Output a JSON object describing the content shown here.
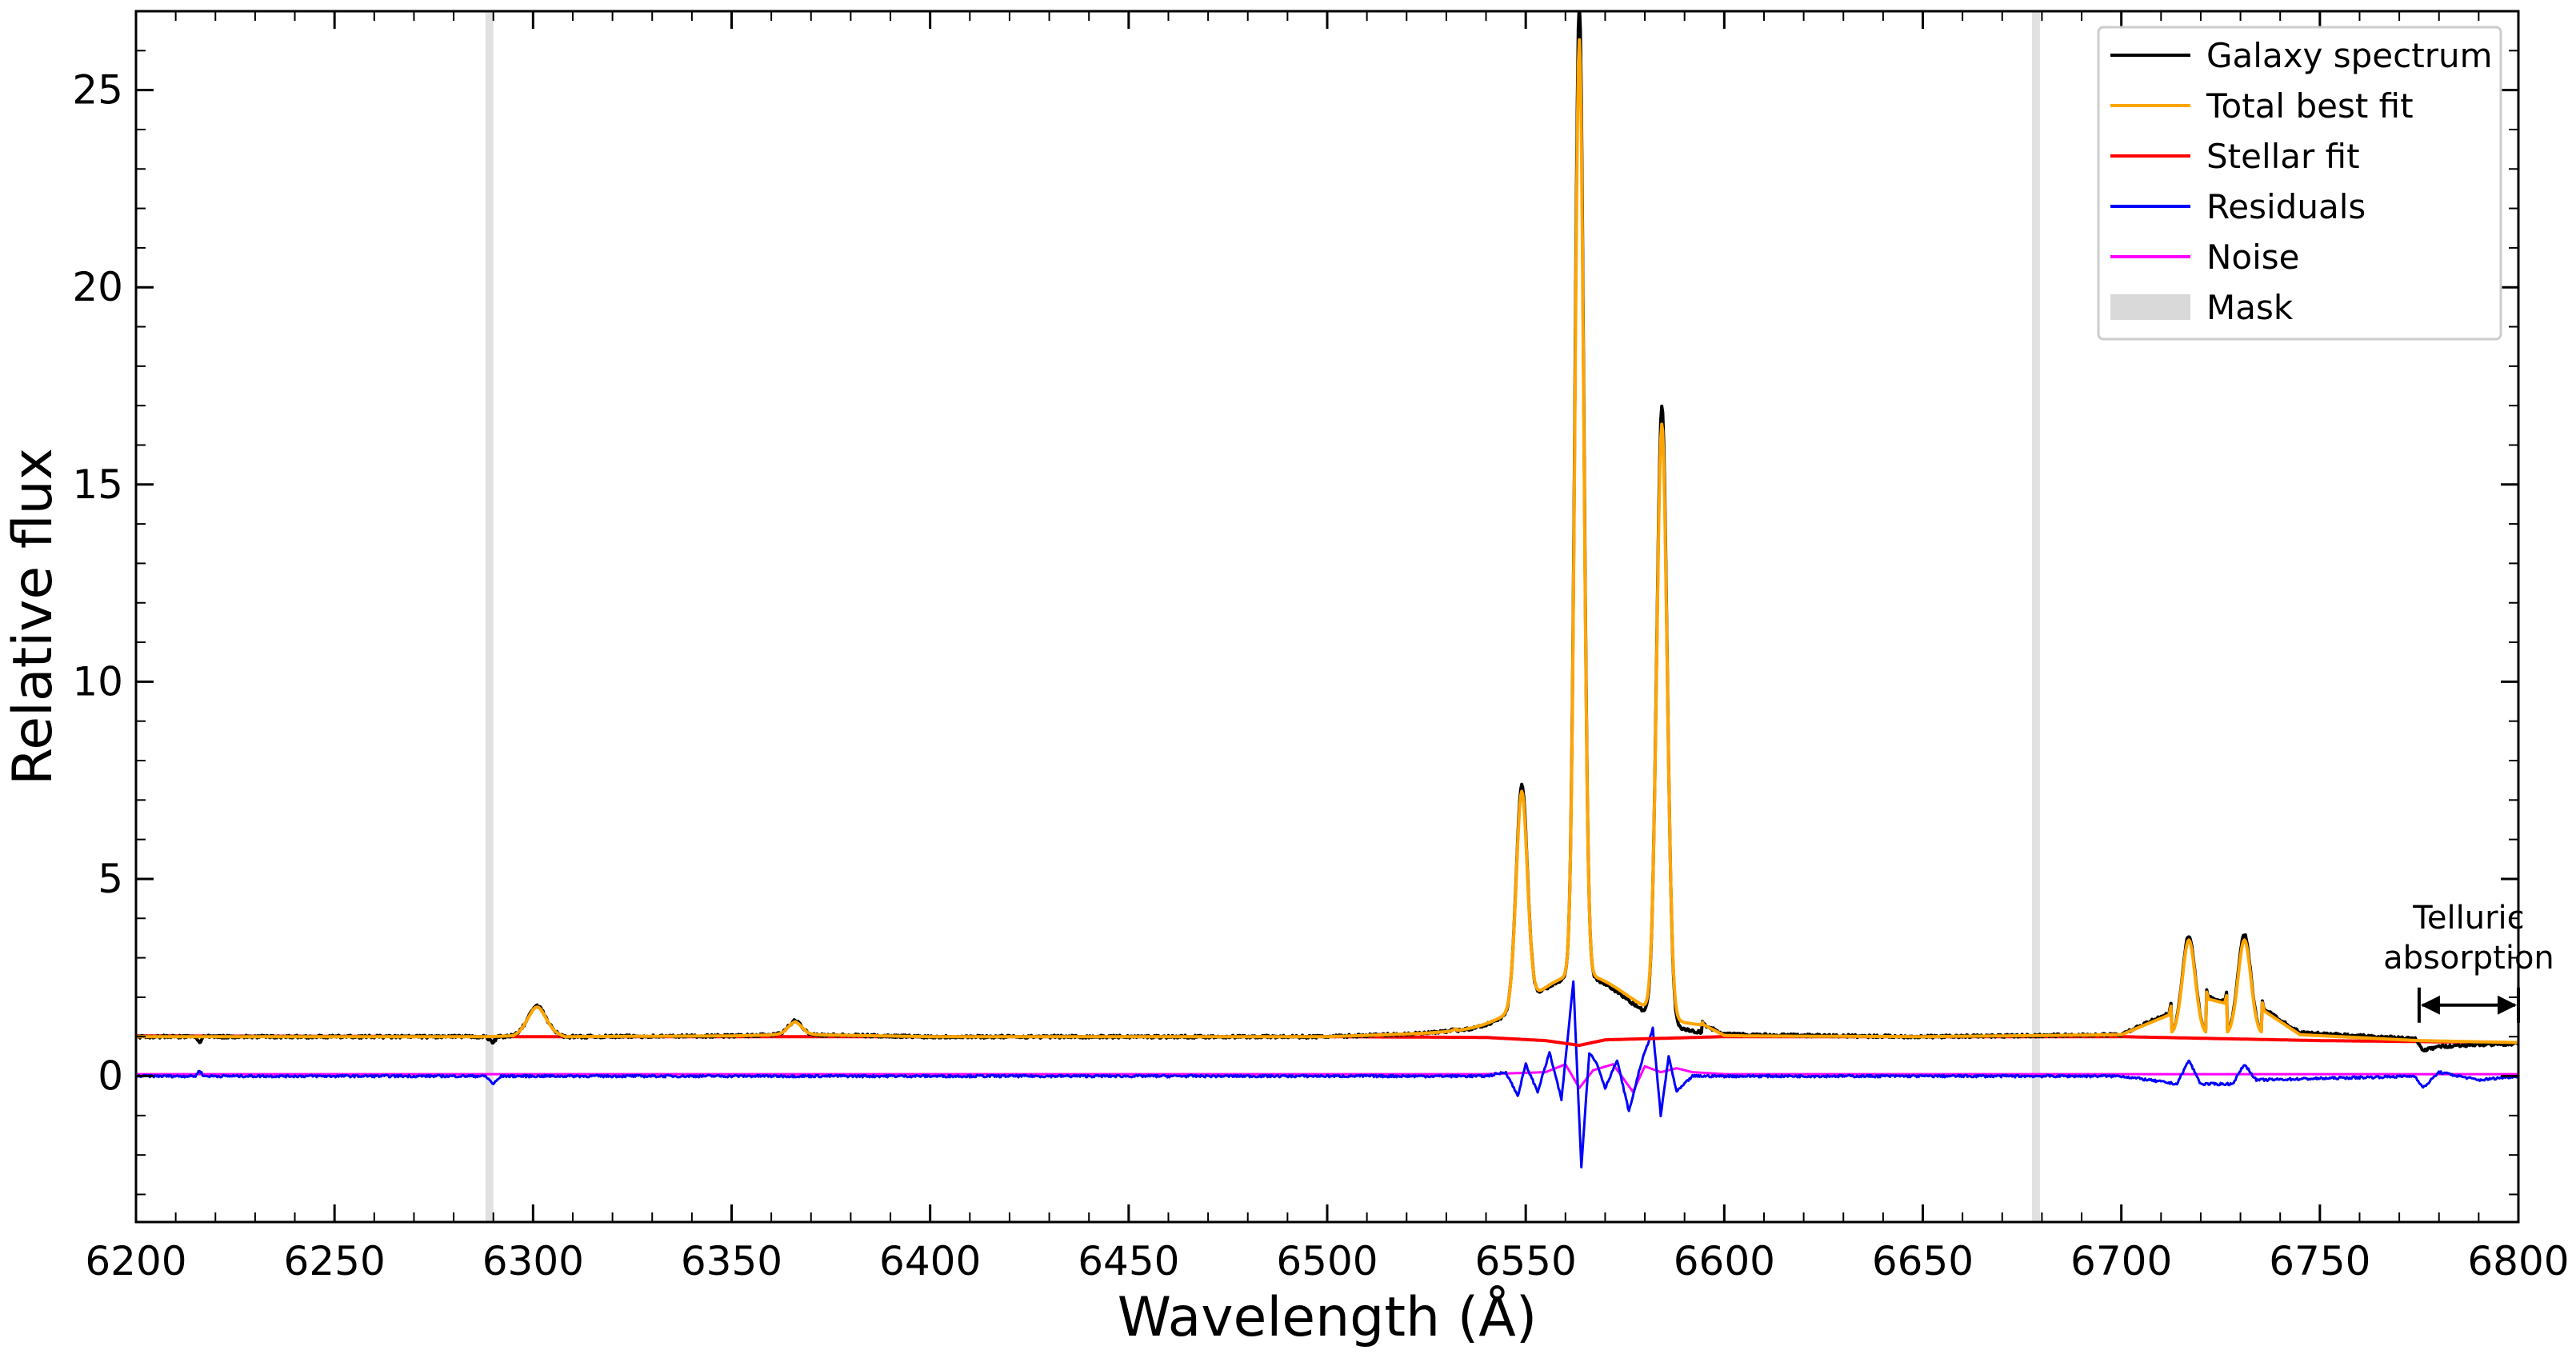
{
  "chart_data": {
    "type": "line",
    "xlabel": "Wavelength (Å)",
    "ylabel": "Relative flux",
    "xlim": [
      6200,
      6800
    ],
    "ylim": [
      -3.7,
      27
    ],
    "x_ticks": [
      6200,
      6250,
      6300,
      6350,
      6400,
      6450,
      6500,
      6550,
      6600,
      6650,
      6700,
      6750,
      6800
    ],
    "y_ticks": [
      0,
      5,
      10,
      15,
      20,
      25
    ],
    "x_minor_step": 10,
    "y_minor_step": 1,
    "grid": false,
    "legend_position": "top-right",
    "masks": [
      [
        6288,
        6290
      ],
      [
        6677.5,
        6679.5
      ]
    ],
    "annotation": {
      "lines": [
        "Telluric",
        "absorption"
      ],
      "x_start": 6775,
      "x_end": 6800,
      "arrow_y": 1.8
    },
    "emission_lines": [
      {
        "center": 6301,
        "peak": 0.6,
        "width": 2.0
      },
      {
        "center": 6366,
        "peak": 0.2,
        "width": 2.0
      },
      {
        "center": 6549,
        "peak": 5.4,
        "width": 1.4
      },
      {
        "center": 6563.5,
        "peak": 23.7,
        "width": 1.1
      },
      {
        "center": 6584.3,
        "peak": 15.0,
        "width": 1.3
      },
      {
        "center": 6717,
        "peak": 2.4,
        "width": 1.6
      },
      {
        "center": 6731,
        "peak": 2.4,
        "width": 1.6
      },
      {
        "center": 6563.5,
        "peak": 1.4,
        "width": 12
      }
    ],
    "legend_entries": [
      {
        "label": "Galaxy spectrum",
        "color": "#000000"
      },
      {
        "label": "Total best fit",
        "color": "#ffa500"
      },
      {
        "label": "Stellar fit",
        "color": "#ff0000"
      },
      {
        "label": "Residuals",
        "color": "#0000ff"
      },
      {
        "label": "Noise",
        "color": "#ff00ff"
      },
      {
        "label": "Mask",
        "color": "#d9d9d9"
      }
    ],
    "series": [
      {
        "name": "Galaxy spectrum",
        "color": "#000000",
        "x": [
          6200,
          6215,
          6216,
          6217,
          6250,
          6288,
          6290,
          6291,
          6295,
          6298,
          6301,
          6304,
          6308,
          6350,
          6363,
          6366,
          6369,
          6400,
          6450,
          6500,
          6530,
          6540,
          6545,
          6549,
          6553,
          6557,
          6560,
          6562,
          6563.5,
          6565,
          6567,
          6570,
          6574,
          6578,
          6581,
          6584.3,
          6587,
          6590,
          6595,
          6600,
          6650,
          6700,
          6712,
          6717,
          6722,
          6726,
          6731,
          6736,
          6745,
          6774,
          6776,
          6780,
          6790,
          6800
        ],
        "y": [
          1.0,
          1.0,
          0.85,
          1.0,
          1.0,
          1.0,
          0.85,
          1.0,
          1.02,
          1.15,
          1.6,
          1.15,
          1.0,
          1.02,
          1.05,
          1.2,
          1.05,
          1.0,
          1.0,
          1.0,
          1.1,
          1.6,
          2.6,
          6.5,
          2.6,
          2.4,
          4.5,
          14.0,
          25.7,
          14.0,
          4.0,
          2.7,
          3.4,
          3.6,
          5.5,
          16.6,
          7.0,
          2.5,
          1.3,
          1.05,
          1.0,
          1.05,
          1.6,
          3.85,
          2.0,
          1.9,
          3.85,
          1.7,
          1.1,
          0.95,
          0.65,
          0.75,
          0.8,
          0.82
        ]
      },
      {
        "name": "Total best fit",
        "color": "#ffa500",
        "x": [
          6200,
          6288,
          6295,
          6298,
          6301,
          6304,
          6308,
          6350,
          6363,
          6366,
          6369,
          6400,
          6450,
          6500,
          6530,
          6540,
          6545,
          6549,
          6553,
          6557,
          6560,
          6562,
          6563.5,
          6565,
          6567,
          6570,
          6574,
          6578,
          6581,
          6584.3,
          6587,
          6590,
          6595,
          6600,
          6650,
          6700,
          6712,
          6717,
          6722,
          6726,
          6731,
          6736,
          6745,
          6775,
          6800
        ],
        "y": [
          1.0,
          1.0,
          1.02,
          1.15,
          1.55,
          1.15,
          1.0,
          1.02,
          1.05,
          1.18,
          1.05,
          1.0,
          1.0,
          1.0,
          1.1,
          1.5,
          2.5,
          6.4,
          2.5,
          2.35,
          4.4,
          13.8,
          24.8,
          13.8,
          4.0,
          2.6,
          3.3,
          3.5,
          5.4,
          16.1,
          6.8,
          2.4,
          1.25,
          1.02,
          1.0,
          1.05,
          1.55,
          3.75,
          1.95,
          1.85,
          3.75,
          1.65,
          1.05,
          0.9,
          0.85
        ]
      },
      {
        "name": "Stellar fit",
        "color": "#ff0000",
        "x": [
          6200,
          6300,
          6400,
          6500,
          6540,
          6555,
          6563.5,
          6570,
          6600,
          6700,
          6750,
          6800
        ],
        "y": [
          1.02,
          1.0,
          1.0,
          1.0,
          0.98,
          0.9,
          0.78,
          0.92,
          1.0,
          1.0,
          0.9,
          0.85
        ]
      },
      {
        "name": "Residuals",
        "color": "#0000ff",
        "x": [
          6200,
          6215,
          6216,
          6217,
          6288,
          6290,
          6292,
          6540,
          6545,
          6548,
          6550,
          6553,
          6556,
          6559,
          6562,
          6564,
          6566,
          6568,
          6570,
          6573,
          6576,
          6579,
          6582,
          6584,
          6586,
          6588,
          6592,
          6600,
          6700,
          6714,
          6717,
          6720,
          6728,
          6731,
          6734,
          6774,
          6776,
          6780,
          6790,
          6800
        ],
        "y": [
          0.0,
          0.0,
          0.15,
          0.0,
          0.0,
          -0.2,
          0.0,
          0.0,
          0.1,
          -0.5,
          0.3,
          -0.4,
          0.6,
          -0.6,
          2.4,
          -2.3,
          0.6,
          0.3,
          -0.3,
          0.4,
          -0.9,
          0.3,
          1.2,
          -1.0,
          0.5,
          -0.4,
          0.0,
          0.0,
          0.0,
          -0.2,
          0.4,
          -0.2,
          -0.2,
          0.3,
          -0.1,
          0.0,
          -0.3,
          0.1,
          -0.1,
          0.0
        ]
      },
      {
        "name": "Noise",
        "color": "#ff00ff",
        "x": [
          6200,
          6540,
          6555,
          6560,
          6563.5,
          6567,
          6572,
          6577,
          6580,
          6584,
          6588,
          6592,
          6600,
          6800
        ],
        "y": [
          0.05,
          0.05,
          0.1,
          0.3,
          -0.3,
          0.15,
          0.3,
          -0.4,
          0.25,
          0.1,
          0.2,
          0.1,
          0.05,
          0.05
        ]
      }
    ]
  }
}
